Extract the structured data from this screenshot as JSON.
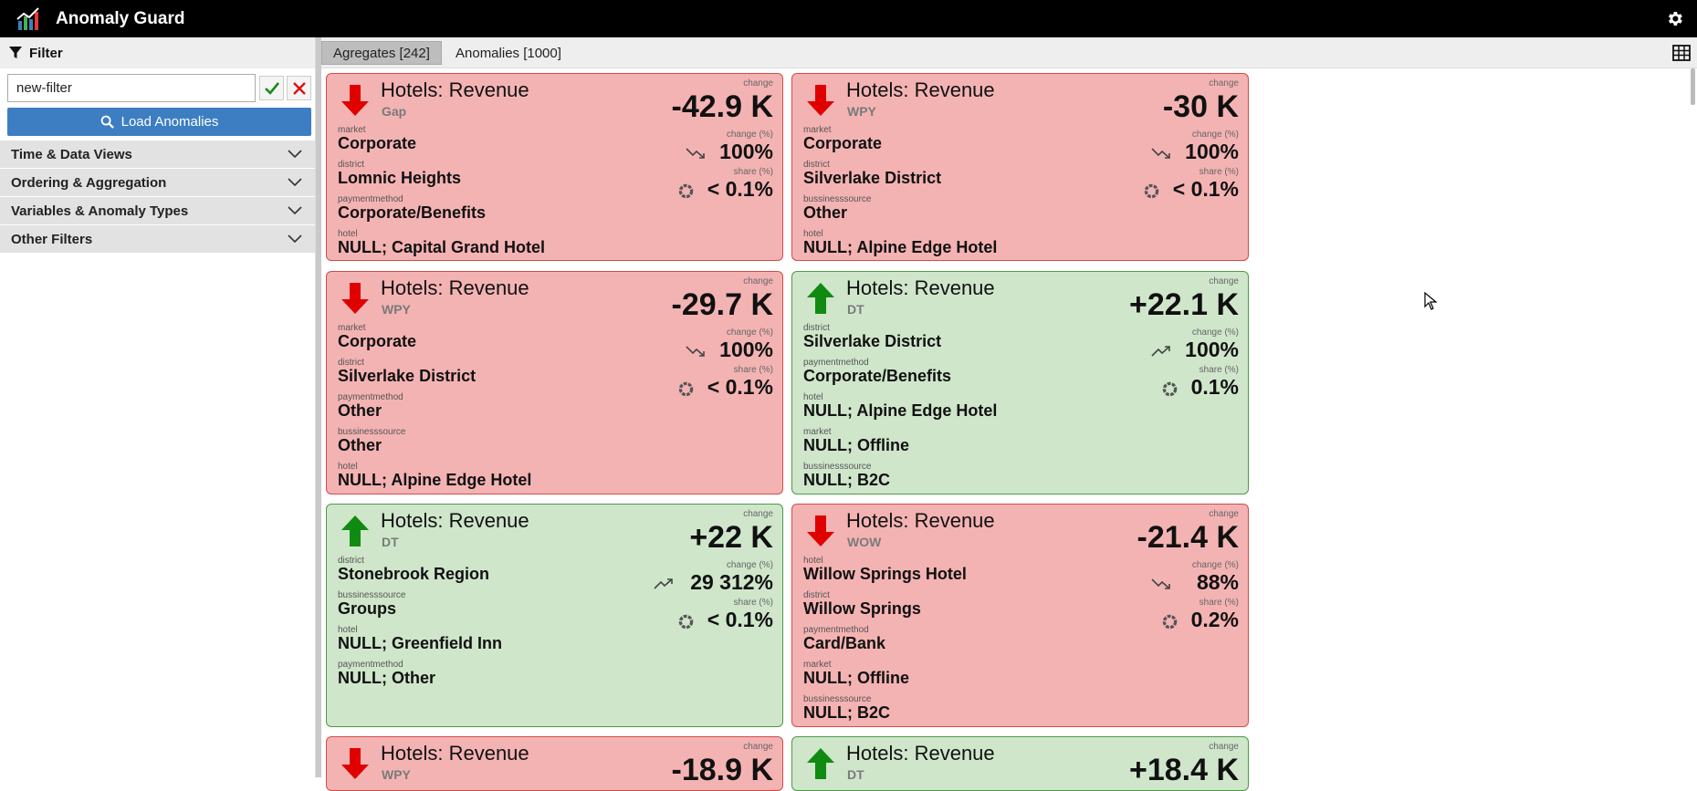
{
  "app": {
    "title": "Anomaly Guard"
  },
  "sidebar": {
    "filter_title": "Filter",
    "filter_value": "new-filter",
    "load_label": "Load Anomalies",
    "sections": [
      {
        "label": "Time & Data Views"
      },
      {
        "label": "Ordering & Aggregation"
      },
      {
        "label": "Variables & Anomaly Types"
      },
      {
        "label": "Other Filters"
      }
    ]
  },
  "tabs": [
    {
      "label": "Agregates [242]",
      "active": true
    },
    {
      "label": "Anomalies [1000]",
      "active": false
    }
  ],
  "cards": [
    {
      "dir": "down",
      "title": "Hotels: Revenue",
      "sub": "Gap",
      "change": "-42.9 K",
      "change_pct": "100%",
      "share": "< 0.1%",
      "dims": [
        {
          "label": "market",
          "value": "Corporate"
        },
        {
          "label": "district",
          "value": "Lomnic Heights"
        },
        {
          "label": "paymentmethod",
          "value": "Corporate/Benefits"
        },
        {
          "label": "hotel",
          "value": "NULL; Capital Grand Hotel"
        }
      ]
    },
    {
      "dir": "down",
      "title": "Hotels: Revenue",
      "sub": "WPY",
      "change": "-30 K",
      "change_pct": "100%",
      "share": "< 0.1%",
      "dims": [
        {
          "label": "market",
          "value": "Corporate"
        },
        {
          "label": "district",
          "value": "Silverlake District"
        },
        {
          "label": "bussinesssource",
          "value": "Other"
        },
        {
          "label": "hotel",
          "value": "NULL; Alpine Edge Hotel"
        }
      ]
    },
    {
      "dir": "down",
      "title": "Hotels: Revenue",
      "sub": "WPY",
      "change": "-29.7 K",
      "change_pct": "100%",
      "share": "< 0.1%",
      "dims": [
        {
          "label": "market",
          "value": "Corporate"
        },
        {
          "label": "district",
          "value": "Silverlake District"
        },
        {
          "label": "paymentmethod",
          "value": "Other"
        },
        {
          "label": "bussinesssource",
          "value": "Other"
        },
        {
          "label": "hotel",
          "value": "NULL; Alpine Edge Hotel"
        }
      ]
    },
    {
      "dir": "up",
      "title": "Hotels: Revenue",
      "sub": "DT",
      "change": "+22.1 K",
      "change_pct": "100%",
      "share": "0.1%",
      "dims": [
        {
          "label": "district",
          "value": "Silverlake District"
        },
        {
          "label": "paymentmethod",
          "value": "Corporate/Benefits"
        },
        {
          "label": "hotel",
          "value": "NULL; Alpine Edge Hotel"
        },
        {
          "label": "market",
          "value": "NULL; Offline"
        },
        {
          "label": "bussinesssource",
          "value": "NULL; B2C"
        }
      ]
    },
    {
      "dir": "up",
      "title": "Hotels: Revenue",
      "sub": "DT",
      "change": "+22 K",
      "change_pct": "29 312%",
      "share": "< 0.1%",
      "dims": [
        {
          "label": "district",
          "value": "Stonebrook Region"
        },
        {
          "label": "bussinesssource",
          "value": "Groups"
        },
        {
          "label": "hotel",
          "value": "NULL; Greenfield Inn"
        },
        {
          "label": "paymentmethod",
          "value": "NULL; Other"
        }
      ]
    },
    {
      "dir": "down",
      "title": "Hotels: Revenue",
      "sub": "WOW",
      "change": "-21.4 K",
      "change_pct": "88%",
      "share": "0.2%",
      "dims": [
        {
          "label": "hotel",
          "value": "Willow Springs Hotel"
        },
        {
          "label": "district",
          "value": "Willow Springs"
        },
        {
          "label": "paymentmethod",
          "value": "Card/Bank"
        },
        {
          "label": "market",
          "value": "NULL; Offline"
        },
        {
          "label": "bussinesssource",
          "value": "NULL; B2C"
        }
      ]
    },
    {
      "dir": "down",
      "title": "Hotels: Revenue",
      "sub": "WPY",
      "change": "-18.9 K",
      "change_pct": "",
      "share": "",
      "dims": []
    },
    {
      "dir": "up",
      "title": "Hotels: Revenue",
      "sub": "DT",
      "change": "+18.4 K",
      "change_pct": "",
      "share": "",
      "dims": []
    }
  ],
  "labels": {
    "change": "change",
    "change_pct": "change (%)",
    "share": "share (%)"
  },
  "colors": {
    "down_bg": "#f4b3b3",
    "up_bg": "#cfe6cb",
    "down_arrow": "#e00000",
    "up_arrow": "#118a11",
    "load_btn": "#3d7ec2"
  },
  "icons": [
    "logo-icon",
    "gear-icon",
    "filter-icon",
    "check-icon",
    "close-icon",
    "search-icon",
    "chevron-down-icon",
    "grid-icon",
    "trend-icon",
    "pie-icon",
    "arrow-down-icon",
    "arrow-up-icon"
  ]
}
